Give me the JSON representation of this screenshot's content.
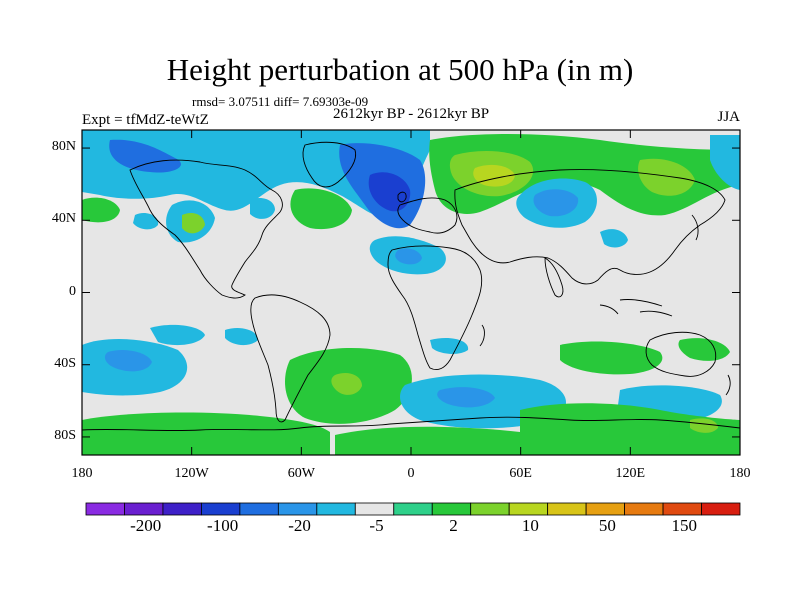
{
  "title": "Height perturbation at 500 hPa (in m)",
  "stats": "rmsd= 3.07511 diff= 7.69303e-09",
  "period": "2612kyr BP - 2612kyr BP",
  "experiment": "Expt = tfMdZ-teWtZ",
  "season": "JJA",
  "y_axis": {
    "ticks": [
      {
        "label": "80N",
        "lat": 80
      },
      {
        "label": "40N",
        "lat": 40
      },
      {
        "label": "0",
        "lat": 0
      },
      {
        "label": "40S",
        "lat": -40
      },
      {
        "label": "80S",
        "lat": -80
      }
    ]
  },
  "x_axis": {
    "ticks": [
      {
        "label": "180",
        "lon": -180
      },
      {
        "label": "120W",
        "lon": -120
      },
      {
        "label": "60W",
        "lon": -60
      },
      {
        "label": "0",
        "lon": 0
      },
      {
        "label": "60E",
        "lon": 60
      },
      {
        "label": "120E",
        "lon": 120
      },
      {
        "label": "180",
        "lon": 180
      }
    ]
  },
  "colorbar": {
    "colors": [
      "#8a2be2",
      "#6a1fd0",
      "#3e20c8",
      "#1a3fd0",
      "#1f6ee0",
      "#2a95e8",
      "#22b8e0",
      "#e6e6e6",
      "#2ed08a",
      "#28c83a",
      "#7cd22c",
      "#b8d620",
      "#d8c418",
      "#e6a012",
      "#e67a10",
      "#e04a10",
      "#d81e10"
    ],
    "labels": [
      "-200",
      "-100",
      "-20",
      "-5",
      "2",
      "10",
      "50",
      "150"
    ]
  },
  "legend": {
    "ocean_color": "#e6e6e6",
    "coast_color": "#000000"
  }
}
